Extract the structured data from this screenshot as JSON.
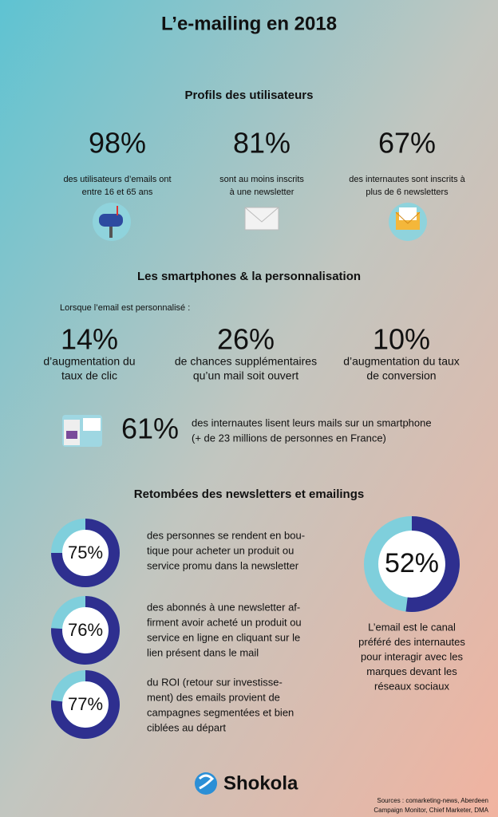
{
  "title": "L’e-mailing en 2018",
  "profiles": {
    "heading": "Profils des utilisateurs",
    "stats": [
      {
        "figure": "98%",
        "lines": [
          "des utilisateurs d’emails ont",
          "entre 16 et 65 ans"
        ]
      },
      {
        "figure": "81%",
        "lines": [
          "sont au moins inscrits",
          "à une newsletter"
        ]
      },
      {
        "figure": "67%",
        "lines": [
          "des internautes sont inscrits à",
          "plus de 6 newsletters"
        ]
      }
    ]
  },
  "smartphones": {
    "heading": "Les smartphones & la personnalisation",
    "intro": "Lorsque l’email est personnalisé :",
    "stats": [
      {
        "figure": "14%",
        "lines": [
          "d’augmentation du",
          "taux de clic"
        ]
      },
      {
        "figure": "26%",
        "lines": [
          "de chances supplémentaires",
          "qu’un mail soit ouvert"
        ]
      },
      {
        "figure": "10%",
        "lines": [
          "d’augmentation du taux",
          "de conversion"
        ]
      }
    ],
    "mobile": {
      "figure": "61%",
      "lines": [
        "des internautes lisent leurs mails sur un smartphone",
        "(+ de 23 millions de personnes en France)"
      ]
    }
  },
  "impact": {
    "heading": "Retombées des newsletters et emailings",
    "donuts": [
      {
        "value": 75,
        "label": "75%",
        "lines": [
          "des personnes se rendent en bou-",
          "tique pour acheter un produit ou",
          "service promu dans la newsletter"
        ]
      },
      {
        "value": 76,
        "label": "76%",
        "lines": [
          "des abonnés à une newsletter af-",
          "firment avoir acheté un produit ou",
          "service en ligne en cliquant sur le",
          "lien présent dans le mail"
        ]
      },
      {
        "value": 77,
        "label": "77%",
        "lines": [
          "du ROI (retour sur investisse-",
          "ment) des emails provient de",
          "campagnes segmentées et bien",
          "ciblées au départ"
        ]
      }
    ],
    "main": {
      "value": 52,
      "label": "52%",
      "lines": [
        "L’email est le canal",
        "préféré des internautes",
        "pour interagir avec les",
        "marques devant les",
        "réseaux sociaux"
      ]
    }
  },
  "footer": {
    "brand": "Shokola",
    "sources": [
      "Sources : comarketing-news, Aberdeen",
      "Campaign Monitor, Chief Marketer, DMA"
    ]
  }
}
